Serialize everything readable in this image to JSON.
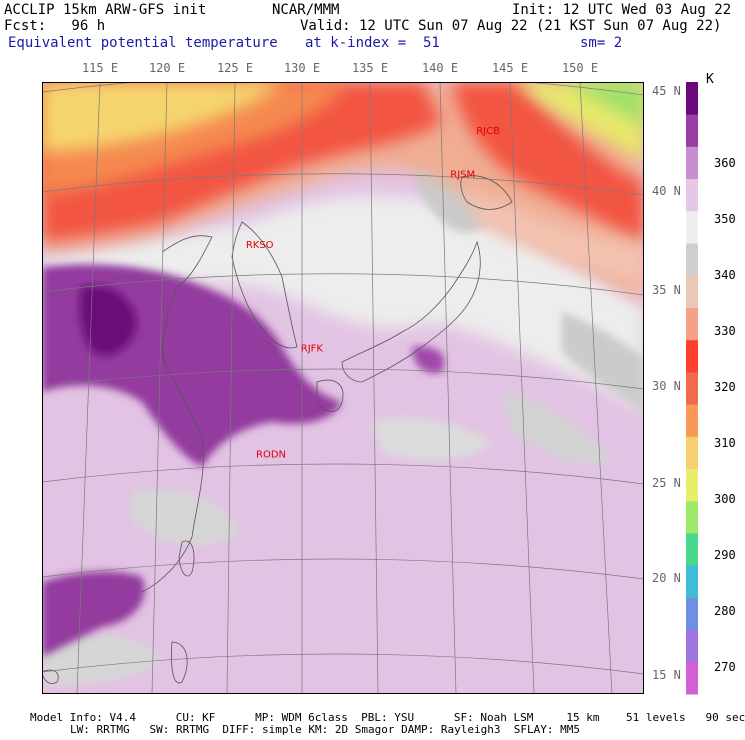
{
  "header": {
    "model": "ACCLIP 15km ARW-GFS init",
    "org": "NCAR/MMM",
    "init": "Init: 12 UTC Wed 03 Aug 22",
    "fcst": "Fcst:   96 h",
    "valid": "Valid: 12 UTC Sun 07 Aug 22 (21 KST Sun 07 Aug 22)",
    "field": "Equivalent potential temperature",
    "level": "at k-index =  51",
    "smooth": "sm= 2"
  },
  "lon_labels": [
    "115 E",
    "120 E",
    "125 E",
    "130 E",
    "135 E",
    "140 E",
    "145 E",
    "150 E"
  ],
  "lat_labels": [
    "45 N",
    "40 N",
    "35 N",
    "30 N",
    "25 N",
    "20 N",
    "15 N"
  ],
  "stations": [
    {
      "id": "RJCB",
      "lon": 143.2,
      "lat": 42.9
    },
    {
      "id": "RJSM",
      "lon": 141.4,
      "lat": 40.7
    },
    {
      "id": "RKSO",
      "lon": 127.0,
      "lat": 37.1
    },
    {
      "id": "RJFK",
      "lon": 130.7,
      "lat": 31.8
    },
    {
      "id": "RODN",
      "lon": 127.8,
      "lat": 26.4
    }
  ],
  "colorbar": {
    "units": "K",
    "levels": [
      "270",
      "280",
      "290",
      "300",
      "310",
      "320",
      "330",
      "340",
      "350",
      "360"
    ],
    "colors": [
      "#d65fd6",
      "#9f74e0",
      "#6f8fe6",
      "#3fbcd6",
      "#4ad88c",
      "#9ee86a",
      "#e8ee6a",
      "#f6d070",
      "#f79a56",
      "#f06a4e",
      "#ff3e2e",
      "#f7a088",
      "#e9c8b8",
      "#cfcfcf",
      "#efefef",
      "#e6c8e6",
      "#c78fd2",
      "#9a3ea6",
      "#6a0a7a"
    ]
  },
  "footer": {
    "line1": "Model Info: V4.4      CU: KF      MP: WDM 6class  PBL: YSU      SF: Noah LSM     15 km    51 levels   90 sec",
    "line2": "LW: RRTMG   SW: RRTMG  DIFF: simple KM: 2D Smagor DAMP: Rayleigh3  SFLAY: MM5"
  }
}
